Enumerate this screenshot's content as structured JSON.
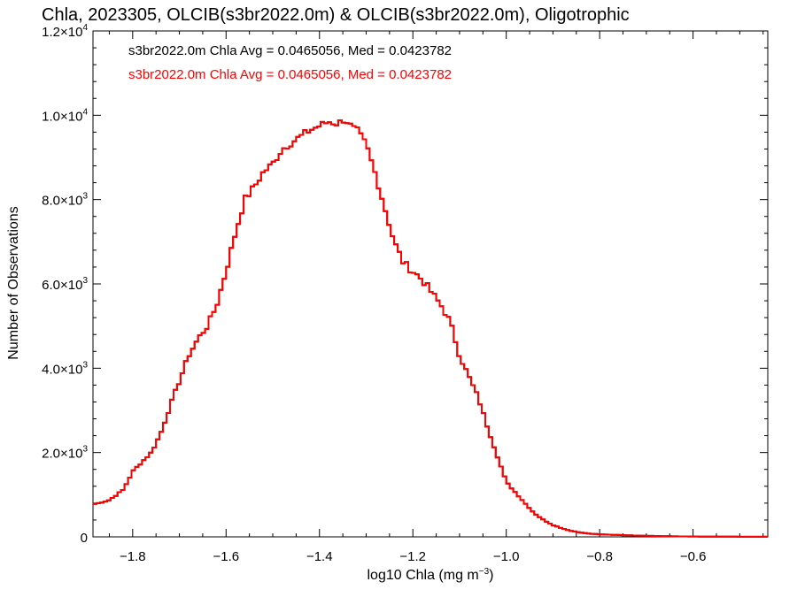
{
  "chart_data": {
    "type": "histogram",
    "title": "Chla, 2023305, OLCIB(s3br2022.0m) & OLCIB(s3br2022.0m), Oligotrophic",
    "xlabel_prefix": "log10 Chla (mg m",
    "xlabel_sup": "−3",
    "xlabel_suffix": ")",
    "ylabel": "Number of Observations",
    "xlim": [
      -1.885,
      -0.44
    ],
    "ylim": [
      0,
      12000
    ],
    "x_ticks": [
      -1.8,
      -1.6,
      -1.4,
      -1.2,
      -1.0,
      -0.8,
      -0.6
    ],
    "x_tick_labels": [
      "−1.8",
      "−1.6",
      "−1.4",
      "−1.2",
      "−1.0",
      "−0.8",
      "−0.6"
    ],
    "y_ticks": [
      {
        "value": 0,
        "mant": "0",
        "exp": ""
      },
      {
        "value": 2000,
        "mant": "2.0×10",
        "exp": "3"
      },
      {
        "value": 4000,
        "mant": "4.0×10",
        "exp": "3"
      },
      {
        "value": 6000,
        "mant": "6.0×10",
        "exp": "3"
      },
      {
        "value": 8000,
        "mant": "8.0×10",
        "exp": "3"
      },
      {
        "value": 10000,
        "mant": "1.0×10",
        "exp": "4"
      },
      {
        "value": 12000,
        "mant": "1.2×10",
        "exp": "4"
      }
    ],
    "annotations": [
      {
        "text": "s3br2022.0m Chla Avg = 0.0465056, Med = 0.0423782",
        "color": "#000000"
      },
      {
        "text": "s3br2022.0m Chla Avg = 0.0465056, Med = 0.0423782",
        "color": "#ff0000"
      }
    ],
    "series": [
      {
        "color": "#000000"
      },
      {
        "color": "#ff0000"
      }
    ],
    "bin_width": 0.0075,
    "x": [
      -1.88,
      -1.85,
      -1.82,
      -1.8,
      -1.78,
      -1.76,
      -1.74,
      -1.72,
      -1.7,
      -1.68,
      -1.66,
      -1.64,
      -1.62,
      -1.6,
      -1.58,
      -1.56,
      -1.54,
      -1.52,
      -1.5,
      -1.48,
      -1.46,
      -1.44,
      -1.42,
      -1.4,
      -1.38,
      -1.36,
      -1.35,
      -1.34,
      -1.33,
      -1.32,
      -1.3,
      -1.28,
      -1.26,
      -1.24,
      -1.22,
      -1.2,
      -1.18,
      -1.16,
      -1.14,
      -1.12,
      -1.1,
      -1.08,
      -1.06,
      -1.04,
      -1.02,
      -1.0,
      -0.98,
      -0.96,
      -0.94,
      -0.92,
      -0.9,
      -0.88,
      -0.86,
      -0.84,
      -0.82,
      -0.8,
      -0.76,
      -0.72,
      -0.68,
      -0.64,
      -0.6,
      -0.55,
      -0.5,
      -0.44
    ],
    "y": [
      780,
      870,
      1120,
      1550,
      1780,
      2000,
      2450,
      3100,
      3700,
      4300,
      4700,
      5000,
      5500,
      6300,
      7200,
      8000,
      8300,
      8650,
      8850,
      9200,
      9350,
      9500,
      9650,
      9750,
      9850,
      9800,
      9900,
      9850,
      9700,
      9650,
      9300,
      8600,
      7800,
      7000,
      6500,
      6300,
      6100,
      5800,
      5500,
      5100,
      4300,
      3800,
      3300,
      2600,
      1950,
      1300,
      1050,
      800,
      560,
      400,
      280,
      200,
      140,
      100,
      75,
      60,
      45,
      30,
      20,
      12,
      8,
      5,
      3,
      2
    ]
  }
}
